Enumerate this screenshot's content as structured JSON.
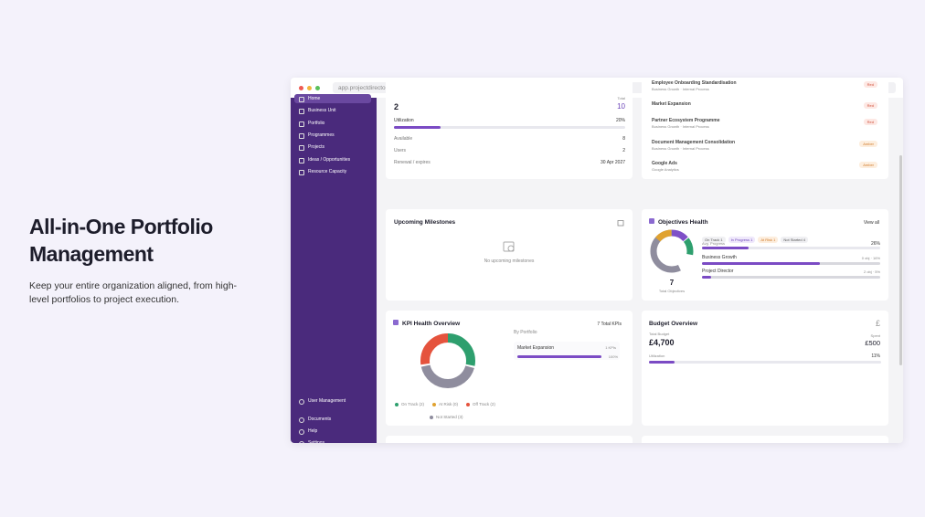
{
  "hero": {
    "title": "All-in-One Portfolio Management",
    "text": "Keep your entire organization aligned, from high-level portfolios to project execution."
  },
  "browser": {
    "url": "app.projectdirector.com/dashboard"
  },
  "sidebar": {
    "top": [
      "Home",
      "Business Unit",
      "Portfolio",
      "Programmes",
      "Projects",
      "Ideas / Opportunities",
      "Resource Capacity"
    ],
    "bottom": [
      "User Management",
      "Documents",
      "Help",
      "Settings"
    ]
  },
  "licence": {
    "count": "2",
    "total_label": "Total",
    "total": "10",
    "utilization_label": "Utilization",
    "utilization": "20%",
    "rows": [
      [
        "Available",
        "8"
      ],
      [
        "Users",
        "2"
      ],
      [
        "Renewal / expires",
        "30 Apr 2027"
      ]
    ]
  },
  "risks": [
    {
      "name": "Employee Onboarding Standardisation",
      "sub": "Business Growth · Internal Process",
      "tag": "Red"
    },
    {
      "name": "Market Expansion",
      "sub": "",
      "tag": "Red"
    },
    {
      "name": "Partner Ecosystem Programme",
      "sub": "Business Growth · Internal Process",
      "tag": "Red"
    },
    {
      "name": "Document Management Consolidation",
      "sub": "Business Growth · Internal Process",
      "tag": "Amber"
    },
    {
      "name": "Google Ads",
      "sub": "Google Analytics",
      "tag": "Amber"
    }
  ],
  "milestones": {
    "title": "Upcoming Milestones",
    "empty": "No upcoming milestones"
  },
  "objectives": {
    "title": "Objectives Health",
    "view_all": "View all",
    "chips": [
      "On Track 1",
      "In Progress 1",
      "At Risk 1",
      "Not Started 4"
    ],
    "avg_label": "Avg. Progress",
    "avg": "26%",
    "rows": [
      [
        "Business Growth",
        "0 obj · 16%"
      ],
      [
        "Project Director",
        "2 obj · 5%"
      ]
    ],
    "total": "7",
    "total_label": "Total Objectives"
  },
  "kpi": {
    "title": "KPI Health Overview",
    "total": "7 Total KPIs",
    "by": "By Portfolio",
    "row": {
      "name": "Market Expansion",
      "count": "1 KPIs",
      "pct": "100%"
    },
    "legend": [
      "On Track (2)",
      "At Risk (0)",
      "Off Track (2)",
      "Not Started (3)"
    ]
  },
  "budget": {
    "title": "Budget Overview",
    "symbol": "£",
    "total_label": "Total Budget",
    "total": "£4,700",
    "spent_label": "Spent",
    "spent": "£500",
    "util_label": "Utilization",
    "util": "11%"
  }
}
